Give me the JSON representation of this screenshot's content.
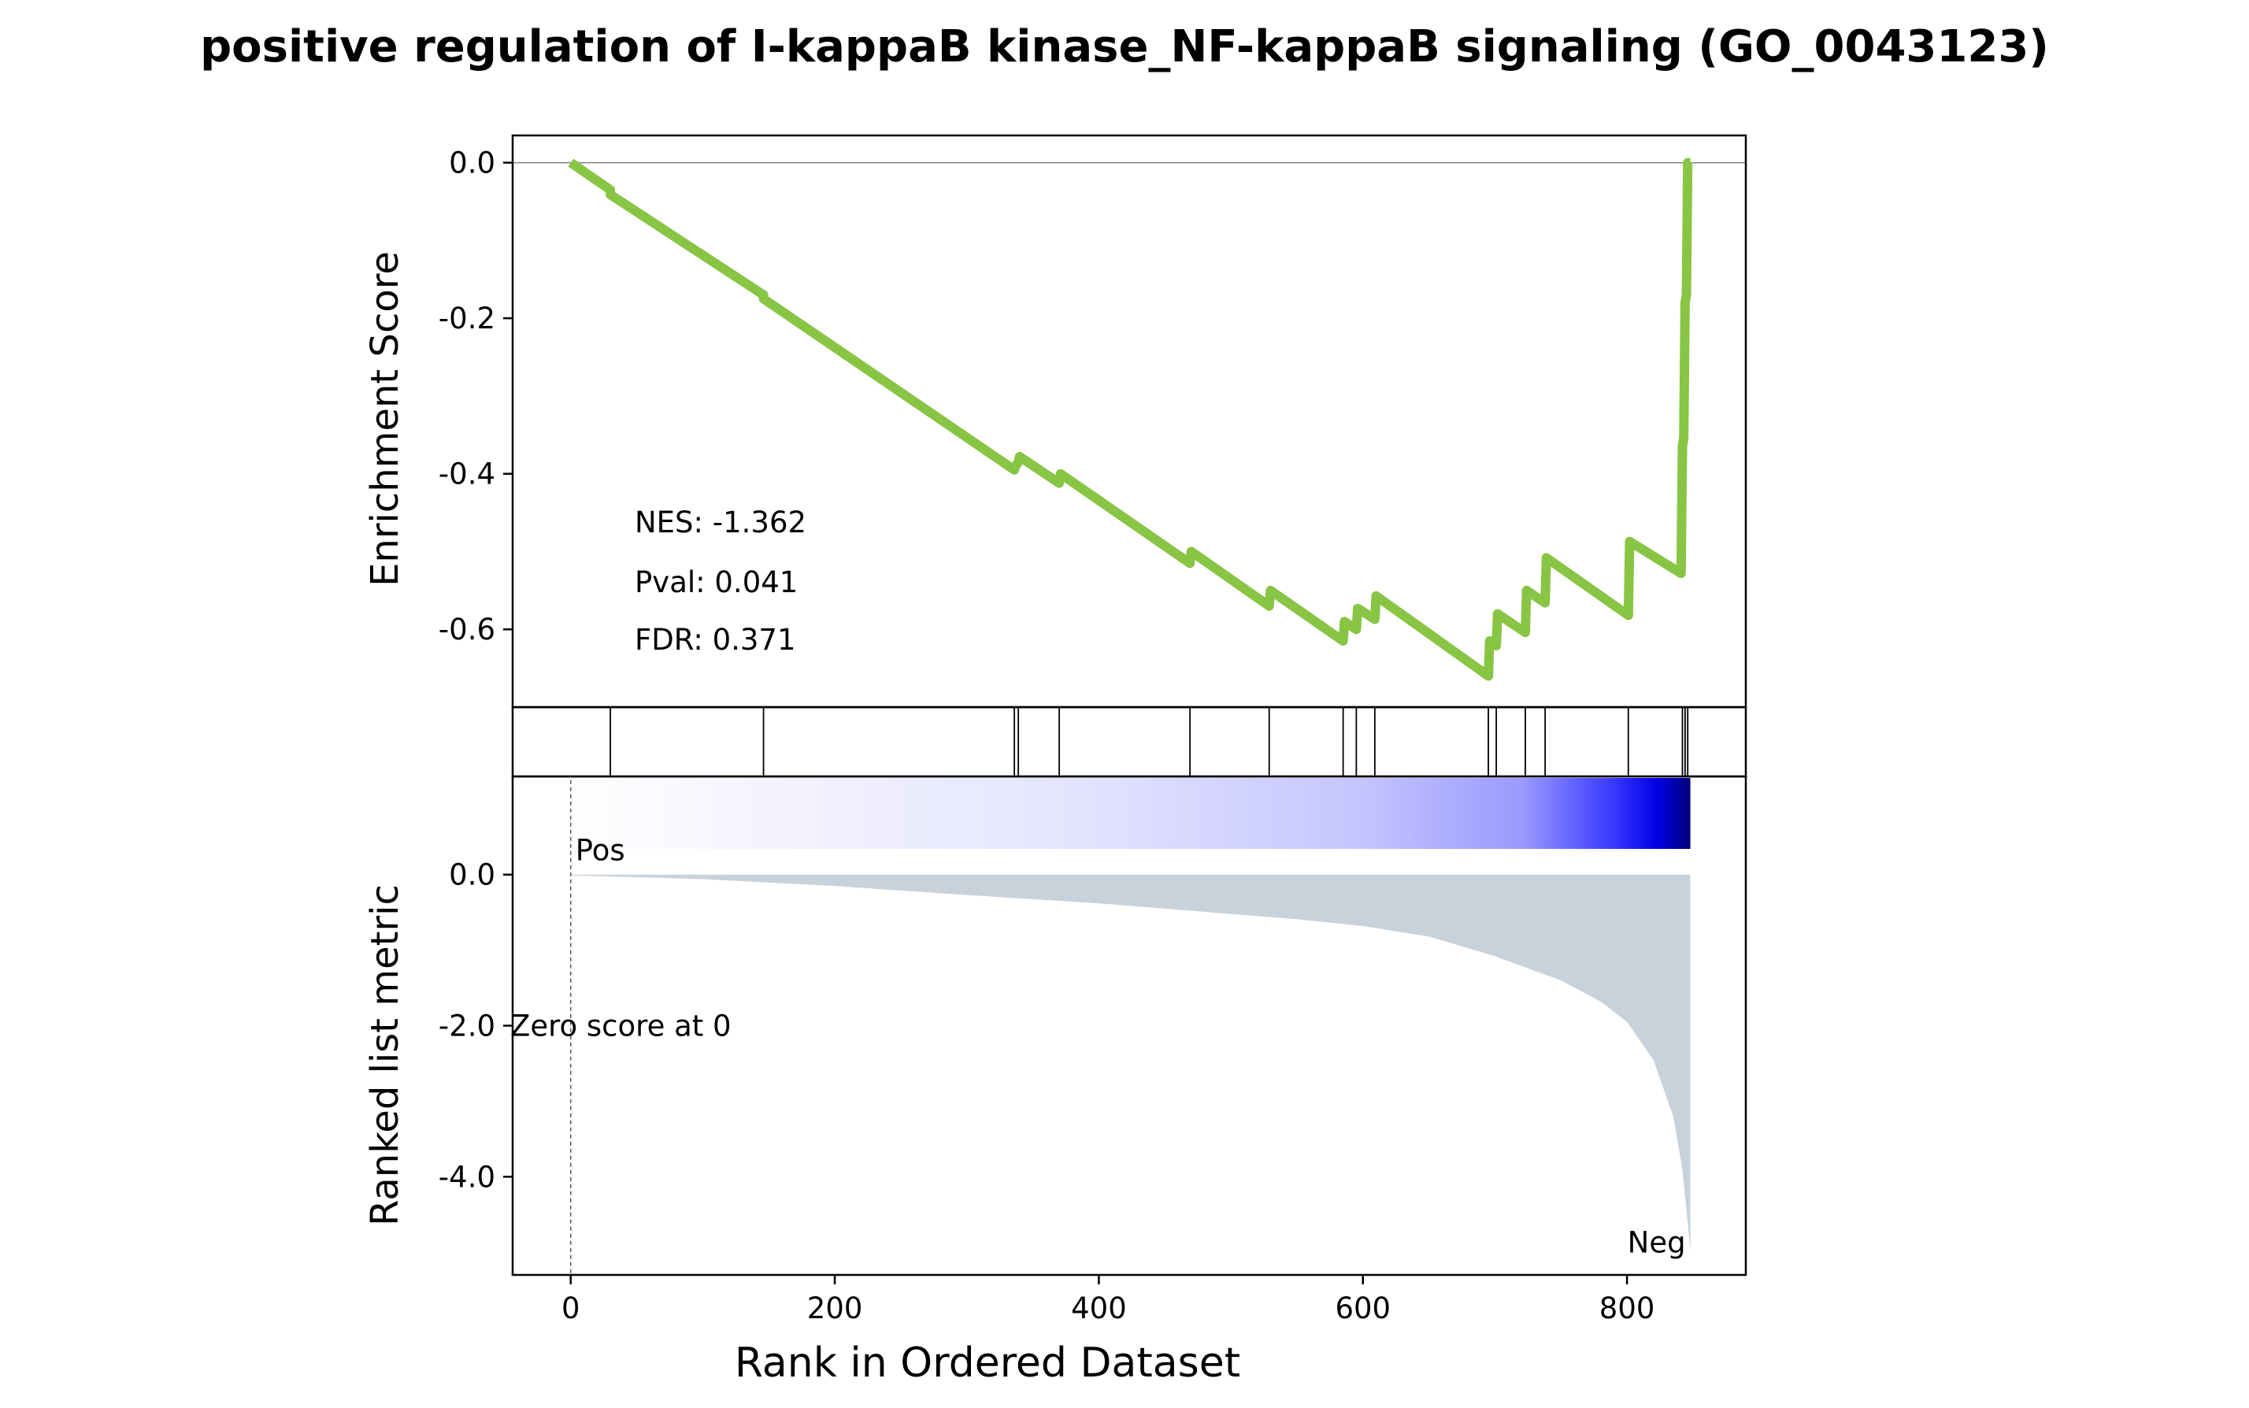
{
  "chart_data": {
    "type": "gsea_enrichment_plot",
    "title": "positive regulation of I-kappaB kinase_NF-kappaB signaling (GO_0043123)",
    "xlabel": "Rank in Ordered Dataset",
    "xlim": [
      -44,
      890
    ],
    "x_ticks": [
      "0",
      "200",
      "400",
      "600",
      "800"
    ],
    "x_tick_values": [
      0,
      200,
      400,
      600,
      800
    ],
    "panels": {
      "enrichment": {
        "ylabel": "Enrichment Score",
        "ylim": [
          -0.7,
          0.035
        ],
        "y_ticks": [
          "0.0",
          "-0.2",
          "-0.4",
          "-0.6"
        ],
        "y_tick_values": [
          0,
          -0.2,
          -0.4,
          -0.6
        ],
        "line_color": "#88c544",
        "points": [
          [
            0,
            0
          ],
          [
            30,
            -0.035
          ],
          [
            30,
            -0.041
          ],
          [
            146,
            -0.17
          ],
          [
            146,
            -0.175
          ],
          [
            336,
            -0.395
          ],
          [
            337,
            -0.39
          ],
          [
            339,
            -0.385
          ],
          [
            340,
            -0.378
          ],
          [
            370,
            -0.412
          ],
          [
            371,
            -0.4
          ],
          [
            469,
            -0.515
          ],
          [
            470,
            -0.5
          ],
          [
            529,
            -0.57
          ],
          [
            530,
            -0.55
          ],
          [
            585,
            -0.615
          ],
          [
            586,
            -0.59
          ],
          [
            595,
            -0.6
          ],
          [
            596,
            -0.573
          ],
          [
            609,
            -0.587
          ],
          [
            610,
            -0.557
          ],
          [
            695,
            -0.66
          ],
          [
            696,
            -0.615
          ],
          [
            701,
            -0.621
          ],
          [
            702,
            -0.58
          ],
          [
            723,
            -0.604
          ],
          [
            724,
            -0.55
          ],
          [
            738,
            -0.566
          ],
          [
            739,
            -0.508
          ],
          [
            801,
            -0.582
          ],
          [
            802,
            -0.487
          ],
          [
            841,
            -0.528
          ],
          [
            842,
            -0.365
          ],
          [
            843,
            -0.354
          ],
          [
            844,
            -0.18
          ],
          [
            845,
            -0.17
          ],
          [
            846,
            0
          ],
          [
            848,
            0
          ]
        ],
        "annotations": [
          "NES: -1.362",
          "Pval: 0.041",
          "FDR: 0.371"
        ]
      },
      "hits": {
        "positions": [
          30,
          146,
          336,
          339,
          370,
          469,
          529,
          585,
          595,
          609,
          695,
          701,
          723,
          738,
          801,
          842,
          844,
          846
        ]
      },
      "colorbar": {
        "from_color": "#ffffff",
        "to_color": "#0000e6",
        "end_color": "#00007a",
        "x_range": [
          0,
          848
        ]
      },
      "ranked_metric": {
        "ylabel": "Ranked list metric",
        "ylim": [
          -5.3,
          1.3
        ],
        "y_ticks": [
          "0.0",
          "-2.0",
          "-4.0"
        ],
        "y_tick_values": [
          0,
          -2,
          -4
        ],
        "fill_color": "#c8d2db",
        "profile": [
          [
            0,
            -0.01
          ],
          [
            100,
            -0.06
          ],
          [
            200,
            -0.15
          ],
          [
            300,
            -0.27
          ],
          [
            400,
            -0.38
          ],
          [
            500,
            -0.52
          ],
          [
            550,
            -0.59
          ],
          [
            600,
            -0.68
          ],
          [
            650,
            -0.82
          ],
          [
            700,
            -1.08
          ],
          [
            750,
            -1.4
          ],
          [
            780,
            -1.68
          ],
          [
            800,
            -1.95
          ],
          [
            820,
            -2.45
          ],
          [
            835,
            -3.2
          ],
          [
            842,
            -3.9
          ],
          [
            846,
            -4.6
          ],
          [
            848,
            -5.0
          ]
        ],
        "zero_score_label": "Zero score at 0",
        "zero_score_x": 0,
        "pos_label": "Pos",
        "neg_label": "Neg",
        "pos_color": "#ff0000",
        "neg_color": "#0000ff"
      }
    }
  }
}
